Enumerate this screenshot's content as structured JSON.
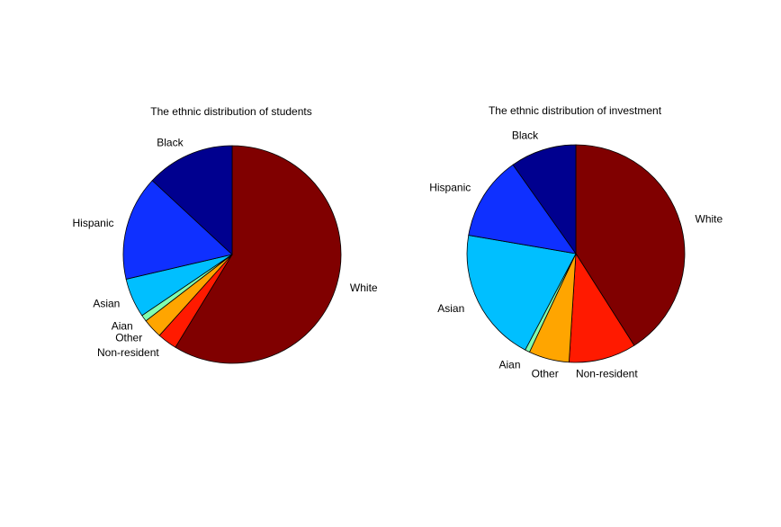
{
  "chart_data": [
    {
      "type": "pie",
      "title": "The ethnic distribution of students",
      "colors": [
        "#800000",
        "#ff1a00",
        "#ffa500",
        "#80ffb0",
        "#00bfff",
        "#0f30ff",
        "#00008f"
      ],
      "categories": [
        "White",
        "Non-resident",
        "Other",
        "Aian",
        "Asian",
        "Hispanic",
        "Black"
      ],
      "values": [
        60.5,
        3.0,
        3.0,
        1.0,
        6.0,
        16.0,
        13.5
      ]
    },
    {
      "type": "pie",
      "title": "The ethnic distribution of investment",
      "colors": [
        "#800000",
        "#ff1a00",
        "#ffa500",
        "#80ffb0",
        "#00bfff",
        "#0f30ff",
        "#00008f"
      ],
      "categories": [
        "White",
        "Non-resident",
        "Other",
        "Aian",
        "Asian",
        "Hispanic",
        "Black"
      ],
      "values": [
        41.0,
        10.0,
        6.0,
        0.7,
        20.0,
        12.5,
        9.8
      ]
    }
  ]
}
